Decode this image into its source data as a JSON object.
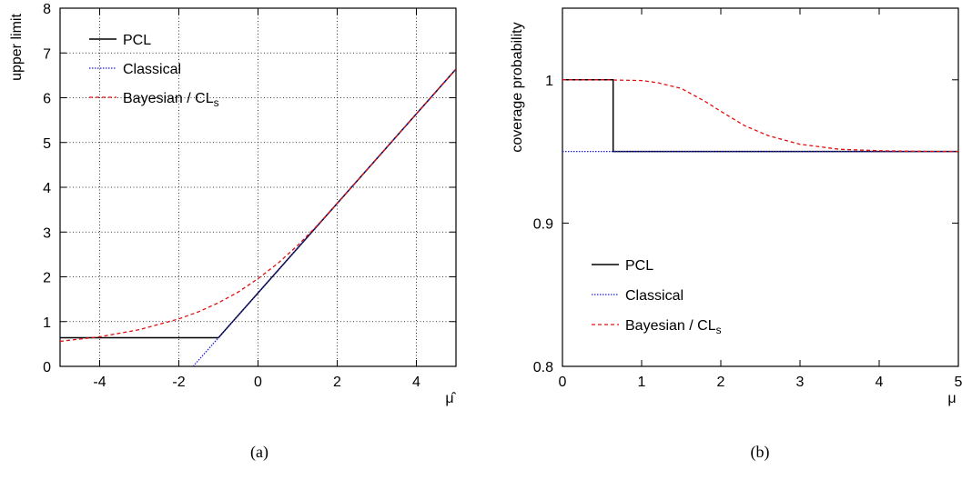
{
  "chart_data": [
    {
      "panel": "a",
      "type": "line",
      "caption": "(a)",
      "xlabel": "μ̂",
      "ylabel": "upper limit",
      "xlim": [
        -5,
        5
      ],
      "ylim": [
        0,
        8
      ],
      "xticks": [
        -4,
        -2,
        0,
        2,
        4
      ],
      "xtick_labels": [
        "-4",
        "-2",
        "0",
        "2",
        "4"
      ],
      "yticks": [
        0,
        1,
        2,
        3,
        4,
        5,
        6,
        7,
        8
      ],
      "ytick_labels": [
        "0",
        "1",
        "2",
        "3",
        "4",
        "5",
        "6",
        "7",
        "8"
      ],
      "grid": true,
      "legend_position": "top-left",
      "series": [
        {
          "name": "PCL",
          "color": "#000000",
          "style": "solid",
          "x": [
            -5,
            -1,
            0,
            1,
            2,
            3,
            4,
            5
          ],
          "y": [
            0.64,
            0.64,
            1.64,
            2.64,
            3.64,
            4.64,
            5.64,
            6.64
          ]
        },
        {
          "name": "Classical",
          "color": "#1f1fd6",
          "style": "dotted",
          "x": [
            -1.64,
            -1,
            0,
            1,
            2,
            3,
            4,
            5
          ],
          "y": [
            0,
            0.64,
            1.64,
            2.64,
            3.64,
            4.64,
            5.64,
            6.64
          ]
        },
        {
          "name": "Bayesian / CL_s",
          "color": "#e01010",
          "style": "dashed",
          "x": [
            -5,
            -4,
            -3,
            -2,
            -1.5,
            -1,
            -0.5,
            0,
            0.5,
            1,
            1.5,
            2,
            3,
            4,
            5
          ],
          "y": [
            0.56,
            0.66,
            0.82,
            1.06,
            1.22,
            1.42,
            1.66,
            1.96,
            2.3,
            2.7,
            3.15,
            3.64,
            4.64,
            5.64,
            6.64
          ]
        }
      ]
    },
    {
      "panel": "b",
      "type": "line",
      "caption": "(b)",
      "xlabel": "μ",
      "ylabel": "coverage probability",
      "xlim": [
        0,
        5
      ],
      "ylim": [
        0.8,
        1.05
      ],
      "xticks": [
        0,
        1,
        2,
        3,
        4,
        5
      ],
      "xtick_labels": [
        "0",
        "1",
        "2",
        "3",
        "4",
        "5"
      ],
      "yticks": [
        0.8,
        0.9,
        1.0
      ],
      "ytick_labels": [
        "0.8",
        "0.9",
        "1"
      ],
      "grid": false,
      "legend_position": "bottom-left",
      "series": [
        {
          "name": "PCL",
          "color": "#000000",
          "style": "solid",
          "x": [
            0,
            0.64,
            0.64,
            5
          ],
          "y": [
            1.0,
            1.0,
            0.95,
            0.95
          ]
        },
        {
          "name": "Classical",
          "color": "#1f1fd6",
          "style": "dotted",
          "x": [
            0,
            5
          ],
          "y": [
            0.95,
            0.95
          ]
        },
        {
          "name": "Bayesian / CL_s",
          "color": "#e01010",
          "style": "dashed",
          "x": [
            0,
            0.5,
            1.0,
            1.2,
            1.5,
            1.8,
            2.0,
            2.3,
            2.6,
            3.0,
            3.5,
            4.0,
            4.5,
            5.0
          ],
          "y": [
            1.0,
            1.0,
            0.9995,
            0.998,
            0.994,
            0.985,
            0.978,
            0.968,
            0.961,
            0.955,
            0.9515,
            0.9505,
            0.9501,
            0.95
          ]
        }
      ]
    }
  ]
}
